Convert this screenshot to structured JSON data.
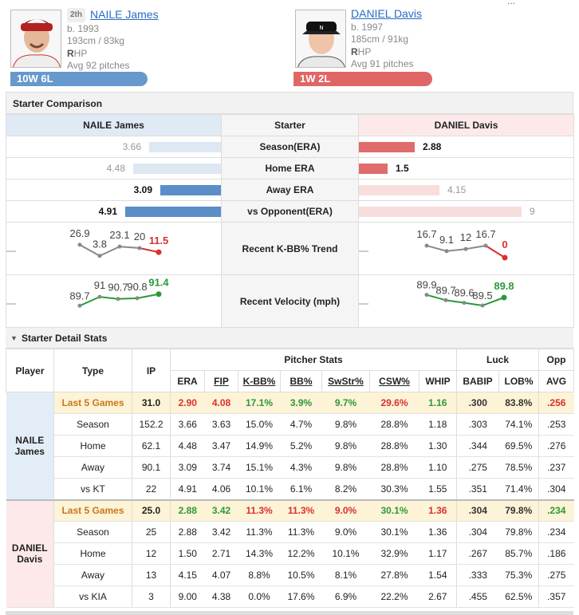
{
  "corner_link": "...",
  "player1": {
    "order": "2th",
    "name": "NAILE James",
    "birth": "b. 1993",
    "body": "193cm / 83kg",
    "hand_prefix": "R",
    "hand_suffix": "HP",
    "avg_pitches": "Avg 92 pitches",
    "record": "10W 6L",
    "color": "#6699cc"
  },
  "player2": {
    "name": "DANIEL Davis",
    "birth": "b. 1997",
    "body": "185cm / 91kg",
    "hand_prefix": "R",
    "hand_suffix": "HP",
    "avg_pitches": "Avg 91 pitches",
    "record": "1W 2L",
    "color": "#e06666"
  },
  "comparison": {
    "title": "Starter Comparison",
    "header": {
      "left": "NAILE James",
      "mid": "Starter",
      "right": "DANIEL Davis"
    },
    "rows": [
      {
        "label": "Season(ERA)",
        "left": "3.66",
        "left_frac": 0.37,
        "left_strong": false,
        "right": "2.88",
        "right_frac": 0.29,
        "right_strong": true
      },
      {
        "label": "Home ERA",
        "left": "4.48",
        "left_frac": 0.45,
        "left_strong": false,
        "right": "1.5",
        "right_frac": 0.15,
        "right_strong": true
      },
      {
        "label": "Away ERA",
        "left": "3.09",
        "left_frac": 0.31,
        "left_strong": true,
        "right": "4.15",
        "right_frac": 0.42,
        "right_strong": false
      },
      {
        "label": "vs Opponent(ERA)",
        "left": "4.91",
        "left_frac": 0.49,
        "left_strong": true,
        "right": "9",
        "right_frac": 0.9,
        "right_strong": false
      }
    ],
    "kbb_label": "Recent K-BB% Trend",
    "kbb_left": [
      "26.9",
      "3.8",
      "23.1",
      "20",
      "11.5"
    ],
    "kbb_right": [
      "16.7",
      "9.1",
      "12",
      "16.7",
      "0"
    ],
    "velo_label": "Recent Velocity (mph)",
    "velo_left": [
      "89.7",
      "91",
      "90.7",
      "90.8",
      "91.4"
    ],
    "velo_right": [
      "89.9",
      "89.7",
      "89.6",
      "89.5",
      "89.8"
    ]
  },
  "detail": {
    "title": "Starter Detail Stats",
    "headers": {
      "player": "Player",
      "type": "Type",
      "ip": "IP",
      "pitcher_stats": "Pitcher Stats",
      "luck": "Luck",
      "opp": "Opp",
      "cols": [
        "ERA",
        "FIP",
        "K-BB%",
        "BB%",
        "SwStr%",
        "CSW%",
        "WHIP",
        "BABIP",
        "LOB%",
        "AVG"
      ]
    },
    "groups": [
      {
        "player": "NAILE\nJames",
        "rows": [
          {
            "type": "Last 5 Games",
            "ip": "31.0",
            "vals": [
              "2.90",
              "4.08",
              "17.1%",
              "3.9%",
              "9.7%",
              "29.6%",
              "1.16",
              ".300",
              "83.8%",
              ".256"
            ]
          },
          {
            "type": "Season",
            "ip": "152.2",
            "vals": [
              "3.66",
              "3.63",
              "15.0%",
              "4.7%",
              "9.8%",
              "28.8%",
              "1.18",
              ".303",
              "74.1%",
              ".253"
            ]
          },
          {
            "type": "Home",
            "ip": "62.1",
            "vals": [
              "4.48",
              "3.47",
              "14.9%",
              "5.2%",
              "9.8%",
              "28.8%",
              "1.30",
              ".344",
              "69.5%",
              ".276"
            ]
          },
          {
            "type": "Away",
            "ip": "90.1",
            "vals": [
              "3.09",
              "3.74",
              "15.1%",
              "4.3%",
              "9.8%",
              "28.8%",
              "1.10",
              ".275",
              "78.5%",
              ".237"
            ]
          },
          {
            "type": "vs KT",
            "ip": "22",
            "vals": [
              "4.91",
              "4.06",
              "10.1%",
              "6.1%",
              "8.2%",
              "30.3%",
              "1.55",
              ".351",
              "71.4%",
              ".304"
            ]
          }
        ]
      },
      {
        "player": "DANIEL\nDavis",
        "rows": [
          {
            "type": "Last 5 Games",
            "ip": "25.0",
            "vals": [
              "2.88",
              "3.42",
              "11.3%",
              "11.3%",
              "9.0%",
              "30.1%",
              "1.36",
              ".304",
              "79.8%",
              ".234"
            ]
          },
          {
            "type": "Season",
            "ip": "25",
            "vals": [
              "2.88",
              "3.42",
              "11.3%",
              "11.3%",
              "9.0%",
              "30.1%",
              "1.36",
              ".304",
              "79.8%",
              ".234"
            ]
          },
          {
            "type": "Home",
            "ip": "12",
            "vals": [
              "1.50",
              "2.71",
              "14.3%",
              "12.2%",
              "10.1%",
              "32.9%",
              "1.17",
              ".267",
              "85.7%",
              ".186"
            ]
          },
          {
            "type": "Away",
            "ip": "13",
            "vals": [
              "4.15",
              "4.07",
              "8.8%",
              "10.5%",
              "8.1%",
              "27.8%",
              "1.54",
              ".333",
              "75.3%",
              ".275"
            ]
          },
          {
            "type": "vs KIA",
            "ip": "3",
            "vals": [
              "9.00",
              "4.38",
              "0.0%",
              "17.6%",
              "6.9%",
              "22.2%",
              "2.67",
              ".455",
              "62.5%",
              ".357"
            ]
          }
        ]
      }
    ],
    "last5_colors": [
      [
        "red",
        "red",
        "green",
        "green",
        "green",
        "red",
        "green",
        "norm",
        "norm",
        "red"
      ],
      [
        "green",
        "green",
        "red",
        "red",
        "red",
        "green",
        "red",
        "norm",
        "norm",
        "green"
      ]
    ]
  }
}
